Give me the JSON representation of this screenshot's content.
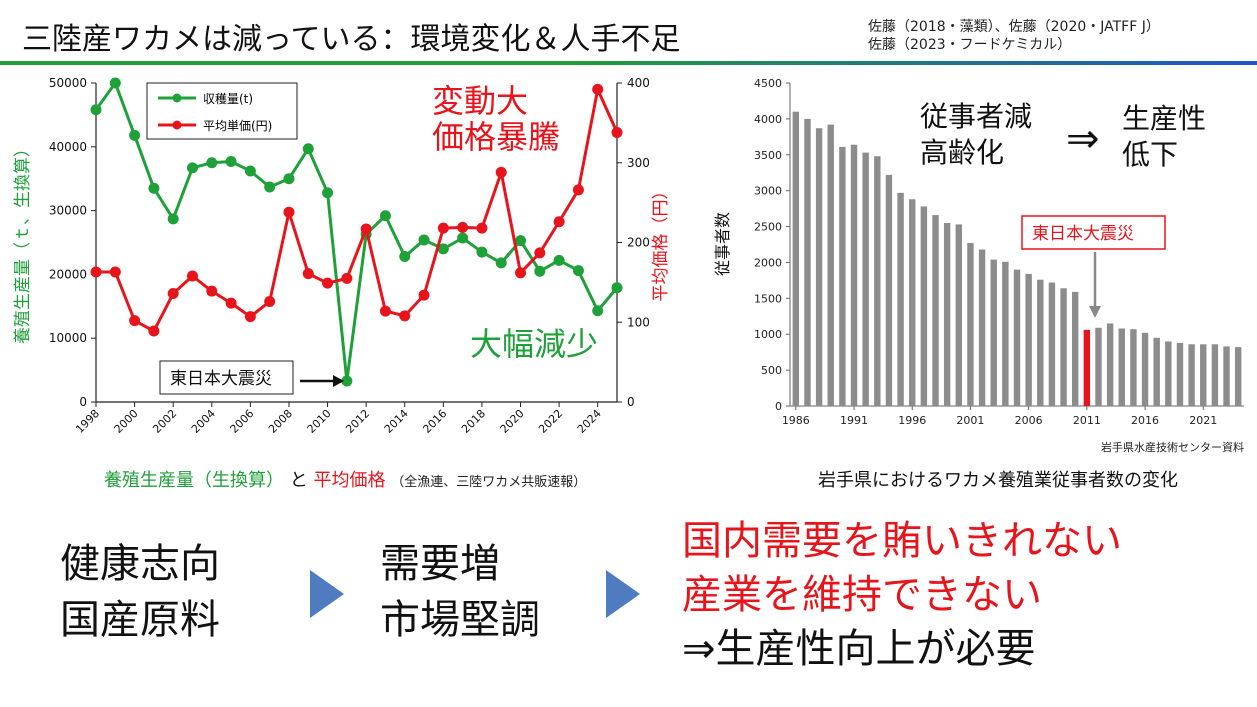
{
  "header": {
    "title": "三陸産ワカメは減っている：環境変化＆人手不足",
    "refs_line1": "佐藤（2018・藻類）、佐藤（2020・JATFF J）",
    "refs_line2": "佐藤（2023・フードケミカル）"
  },
  "colors": {
    "green": "#1fa13a",
    "red": "#e8141b",
    "blue_arrow": "#4f7cc0",
    "gray_bar": "#8c8c8c"
  },
  "chart_data": [
    {
      "type": "line",
      "x": [
        1998,
        1999,
        2000,
        2001,
        2002,
        2003,
        2004,
        2005,
        2006,
        2007,
        2008,
        2009,
        2010,
        2011,
        2012,
        2013,
        2014,
        2015,
        2016,
        2017,
        2018,
        2019,
        2020,
        2021,
        2022,
        2023,
        2024,
        2025
      ],
      "x_ticks": [
        "1998",
        "2000",
        "2002",
        "2004",
        "2006",
        "2008",
        "2010",
        "2012",
        "2014",
        "2016",
        "2018",
        "2020",
        "2022",
        "2024"
      ],
      "series": [
        {
          "name": "収穫量(t)",
          "axis": "left",
          "color": "#1fa13a",
          "values": [
            45800,
            50000,
            41800,
            33500,
            28700,
            36700,
            37500,
            37700,
            36200,
            33700,
            35000,
            39700,
            32800,
            3300,
            26300,
            29200,
            22800,
            25400,
            24000,
            25700,
            23500,
            21800,
            25300,
            20500,
            22200,
            20600,
            14300,
            17900
          ]
        },
        {
          "name": "平均単価(円)",
          "axis": "right",
          "color": "#e8141b",
          "values": [
            163,
            163,
            102,
            89,
            136,
            158,
            139,
            124,
            107,
            126,
            238,
            161,
            149,
            155,
            217,
            114,
            108,
            134,
            218,
            219,
            218,
            288,
            162,
            187,
            226,
            266,
            392,
            338
          ]
        }
      ],
      "ylabel": "養殖生産量（ｔ、生換算）",
      "ylim": [
        0,
        50000
      ],
      "y_ticks": [
        "0",
        "10000",
        "20000",
        "30000",
        "40000",
        "50000"
      ],
      "y2label": "平均価格（円）",
      "y2lim": [
        0,
        400
      ],
      "y2_ticks": [
        "0",
        "100",
        "200",
        "300",
        "400"
      ],
      "legend": "top-left",
      "annotations": {
        "price_spike": [
          "変動大",
          "価格暴騰"
        ],
        "drop": "大幅減少",
        "quake": "東日本大震災"
      },
      "caption_green": "養殖生産量（生換算）",
      "caption_and": "と",
      "caption_red": "平均価格",
      "caption_source": "（全漁連、三陸ワカメ共販速報）"
    },
    {
      "type": "bar",
      "x": [
        1986,
        1987,
        1988,
        1989,
        1990,
        1991,
        1992,
        1993,
        1994,
        1995,
        1996,
        1997,
        1998,
        1999,
        2000,
        2001,
        2002,
        2003,
        2004,
        2005,
        2006,
        2007,
        2008,
        2009,
        2010,
        2011,
        2012,
        2013,
        2014,
        2015,
        2016,
        2017,
        2018,
        2019,
        2020,
        2021,
        2022,
        2023,
        2024
      ],
      "values": [
        4100,
        4000,
        3870,
        3920,
        3610,
        3640,
        3530,
        3480,
        3220,
        2970,
        2880,
        2780,
        2660,
        2550,
        2530,
        2270,
        2180,
        2040,
        2010,
        1900,
        1840,
        1760,
        1720,
        1640,
        1590,
        1060,
        1090,
        1150,
        1080,
        1070,
        1020,
        950,
        900,
        880,
        860,
        860,
        860,
        830,
        820
      ],
      "highlight_x": 2011,
      "x_ticks": [
        "1986",
        "1991",
        "1996",
        "2001",
        "2006",
        "2011",
        "2016",
        "2021"
      ],
      "ylabel": "従事者数",
      "ylim": [
        0,
        4500
      ],
      "y_ticks": [
        "0",
        "500",
        "1000",
        "1500",
        "2000",
        "2500",
        "3000",
        "3500",
        "4000",
        "4500"
      ],
      "grid": false,
      "annotations": {
        "decline": [
          "従事者減",
          "高齢化"
        ],
        "implies": "⇒",
        "productivity": [
          "生産性",
          "低下"
        ],
        "quake": "東日本大震災"
      },
      "source": "岩手県水産技術センター資料",
      "caption": "岩手県におけるワカメ養殖業従事者数の変化"
    }
  ],
  "flow": {
    "step1": [
      "健康志向",
      "国産原料"
    ],
    "step2": [
      "需要増",
      "市場堅調"
    ],
    "result": [
      "国内需要を賄いきれない",
      "産業を維持できない",
      "⇒生産性向上が必要"
    ]
  }
}
